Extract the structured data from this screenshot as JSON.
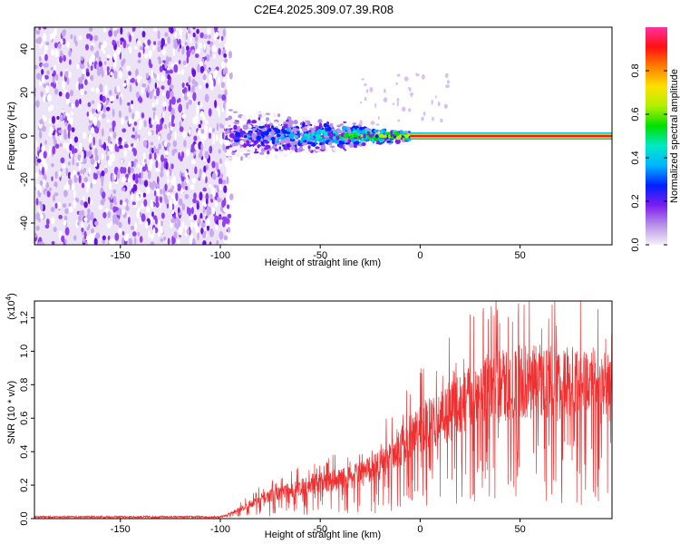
{
  "title": "C2E4.2025.309.07.39.R08",
  "chart_data": [
    {
      "type": "heatmap",
      "xlabel": "Height of straight line (km)",
      "ylabel": "Frequency (Hz)",
      "xlim": [
        -193,
        96
      ],
      "ylim": [
        -50,
        50
      ],
      "xticks": [
        -150,
        -100,
        -50,
        0,
        50
      ],
      "yticks": [
        -40,
        -20,
        0,
        20,
        40
      ],
      "colorbar": {
        "label": "Normalized spectral amplitude",
        "ticks": [
          "0.0",
          "0.2",
          "0.4",
          "0.6",
          "0.8"
        ],
        "range": [
          0,
          1
        ],
        "colors": [
          "#f4f0f8",
          "#b890e8",
          "#7a1ef0",
          "#0020ff",
          "#00b4ff",
          "#00e8c8",
          "#00e000",
          "#b0f000",
          "#ffe000",
          "#ff8000",
          "#ff1010",
          "#ff30a0"
        ]
      },
      "features": {
        "noise_region_x": [
          -193,
          -97
        ],
        "transition_region_x": [
          -97,
          -5
        ],
        "coherent_line_x": [
          -5,
          96
        ],
        "coherent_line_freq": 0
      }
    },
    {
      "type": "line",
      "xlabel": "Height of straight line (km)",
      "ylabel": "SNR (10 * v/v)",
      "scale_label": "(x10",
      "scale_exp": "4",
      "scale_suffix": ")",
      "xlim": [
        -193,
        96
      ],
      "ylim": [
        0,
        1.3
      ],
      "xticks": [
        -150,
        -100,
        -50,
        0,
        50
      ],
      "yticks": [
        "0.0",
        "0.2",
        "0.4",
        "0.6",
        "0.8",
        "1.0",
        "1.2"
      ],
      "color": "#f03030",
      "envelope": {
        "x": [
          -193,
          -100,
          -97,
          -90,
          -80,
          -70,
          -60,
          -50,
          -40,
          -30,
          -20,
          -10,
          0,
          10,
          20,
          30,
          40,
          50,
          60,
          70,
          80,
          90,
          96
        ],
        "y": [
          0.01,
          0.01,
          0.02,
          0.06,
          0.12,
          0.16,
          0.19,
          0.22,
          0.24,
          0.27,
          0.33,
          0.45,
          0.55,
          0.62,
          0.7,
          0.78,
          0.81,
          0.83,
          0.84,
          0.83,
          0.82,
          0.8,
          0.78
        ]
      }
    }
  ]
}
